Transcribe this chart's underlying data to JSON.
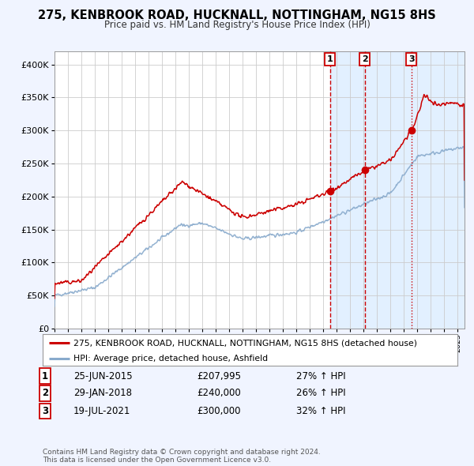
{
  "title": "275, KENBROOK ROAD, HUCKNALL, NOTTINGHAM, NG15 8HS",
  "subtitle": "Price paid vs. HM Land Registry's House Price Index (HPI)",
  "red_label": "275, KENBROOK ROAD, HUCKNALL, NOTTINGHAM, NG15 8HS (detached house)",
  "blue_label": "HPI: Average price, detached house, Ashfield",
  "sale_points": [
    {
      "date_num": 2015.49,
      "price": 207995,
      "label": "1",
      "linestyle": "--"
    },
    {
      "date_num": 2018.08,
      "price": 240000,
      "label": "2",
      "linestyle": "--"
    },
    {
      "date_num": 2021.55,
      "price": 300000,
      "label": "3",
      "linestyle": ":"
    }
  ],
  "table_rows": [
    [
      "1",
      "25-JUN-2015",
      "£207,995",
      "27% ↑ HPI"
    ],
    [
      "2",
      "29-JAN-2018",
      "£240,000",
      "26% ↑ HPI"
    ],
    [
      "3",
      "19-JUL-2021",
      "£300,000",
      "32% ↑ HPI"
    ]
  ],
  "footer": "Contains HM Land Registry data © Crown copyright and database right 2024.\nThis data is licensed under the Open Government Licence v3.0.",
  "ylim": [
    0,
    420000
  ],
  "yticks": [
    0,
    50000,
    100000,
    150000,
    200000,
    250000,
    300000,
    350000,
    400000
  ],
  "xlim": [
    1995,
    2025.5
  ],
  "background_color": "#f0f4ff",
  "plot_bg": "#ffffff",
  "red_color": "#cc0000",
  "blue_color": "#88aacc",
  "shade_color": "#ddeeff",
  "shaded_start": 2015.49,
  "shaded_end": 2025.5,
  "seed": 42
}
